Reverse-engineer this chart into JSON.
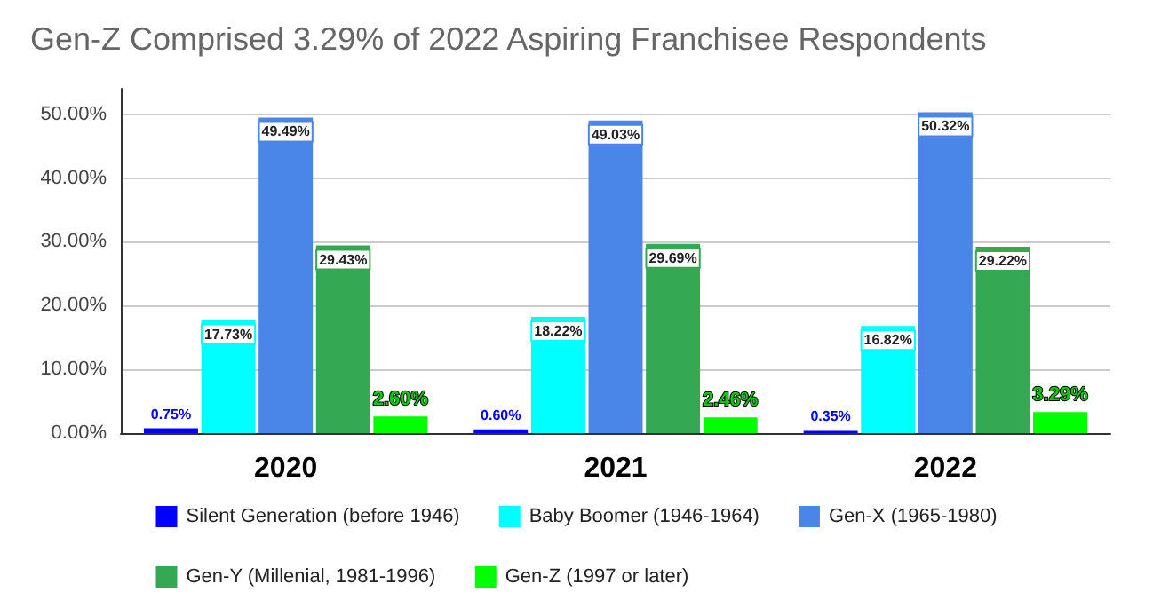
{
  "chart_data": {
    "type": "bar",
    "title": "Gen-Z Comprised 3.29% of 2022 Aspiring Franchisee Respondents",
    "categories": [
      "2020",
      "2021",
      "2022"
    ],
    "series": [
      {
        "name": "Silent Generation (before 1946)",
        "color": "#0000ff",
        "values": [
          0.75,
          0.6,
          0.35
        ],
        "value_labels": [
          "0.75%",
          "0.60%",
          "0.35%"
        ]
      },
      {
        "name": "Baby Boomer (1946-1964)",
        "color": "#00ffff",
        "values": [
          17.73,
          18.22,
          16.82
        ],
        "value_labels": [
          "17.73%",
          "18.22%",
          "16.82%"
        ]
      },
      {
        "name": "Gen-X (1965-1980)",
        "color": "#4a86e8",
        "values": [
          49.49,
          49.03,
          50.32
        ],
        "value_labels": [
          "49.49%",
          "49.03%",
          "50.32%"
        ]
      },
      {
        "name": "Gen-Y (Millenial, 1981-1996)",
        "color": "#34a853",
        "values": [
          29.43,
          29.69,
          29.22
        ],
        "value_labels": [
          "29.43%",
          "29.69%",
          "29.22%"
        ]
      },
      {
        "name": "Gen-Z (1997 or later)",
        "color": "#00ff00",
        "values": [
          2.6,
          2.46,
          3.29
        ],
        "value_labels": [
          "2.60%",
          "2.46%",
          "3.29%"
        ]
      }
    ],
    "ylim": [
      0,
      54
    ],
    "yticks": [
      {
        "value": 0,
        "label": "0.00%"
      },
      {
        "value": 10,
        "label": "10.00%"
      },
      {
        "value": 20,
        "label": "20.00%"
      },
      {
        "value": 30,
        "label": "30.00%"
      },
      {
        "value": 40,
        "label": "40.00%"
      },
      {
        "value": 50,
        "label": "50.00%"
      }
    ],
    "grid": true,
    "legend": "bottom"
  }
}
